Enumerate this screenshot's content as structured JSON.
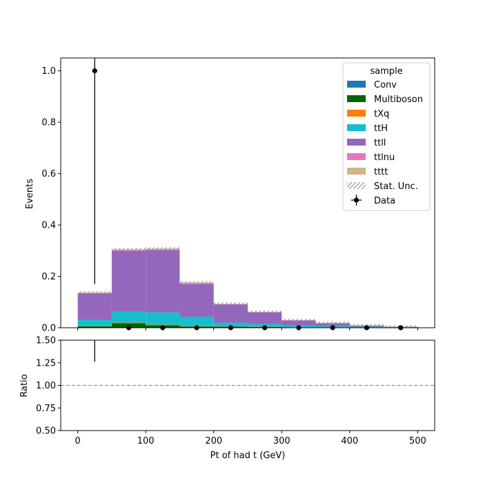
{
  "chart_data": {
    "type": "bar",
    "stacked": true,
    "xlabel": "Pt of had t (GeV)",
    "bin_edges": [
      0,
      50,
      100,
      150,
      200,
      250,
      300,
      350,
      400,
      450,
      500
    ],
    "x_ticks": [
      0,
      100,
      200,
      300,
      400,
      500
    ],
    "xlim": [
      -25,
      525
    ],
    "main": {
      "ylabel": "Events",
      "ylim": [
        0,
        1.05
      ],
      "y_ticks": [
        "0.0",
        "0.2",
        "0.4",
        "0.6",
        "0.8",
        "1.0"
      ],
      "series": [
        {
          "name": "Conv",
          "color": "#1f77b4",
          "values": [
            0,
            0,
            0,
            0,
            0,
            0,
            0,
            0,
            0,
            0
          ]
        },
        {
          "name": "Multiboson",
          "color": "#006400",
          "values": [
            0.006,
            0.018,
            0.01,
            0.005,
            0.004,
            0.003,
            0.002,
            0.001,
            0.001,
            0.0005
          ]
        },
        {
          "name": "tXq",
          "color": "#ff7f0e",
          "values": [
            0.001,
            0.002,
            0.002,
            0.001,
            0.001,
            0.001,
            0.0005,
            0.0005,
            0.0003,
            0.0002
          ]
        },
        {
          "name": "ttH",
          "color": "#17becf",
          "values": [
            0.024,
            0.042,
            0.048,
            0.037,
            0.015,
            0.011,
            0.007,
            0.005,
            0.003,
            0.001
          ]
        },
        {
          "name": "ttll",
          "color": "#9467bd",
          "values": [
            0.103,
            0.238,
            0.243,
            0.128,
            0.071,
            0.045,
            0.019,
            0.011,
            0.004,
            0.002
          ]
        },
        {
          "name": "ttlnu",
          "color": "#e377c2",
          "values": [
            0.001,
            0.002,
            0.002,
            0.002,
            0.001,
            0.001,
            0.0005,
            0.0005,
            0.0003,
            0.0002
          ]
        },
        {
          "name": "tttt",
          "color": "#d2b48c",
          "values": [
            0.002,
            0.003,
            0.003,
            0.003,
            0.001,
            0.0005,
            0.0005,
            0.0005,
            0.0002,
            0.0001
          ]
        }
      ],
      "stat_unc_label": "Stat. Unc.",
      "data": {
        "name": "Data",
        "x": [
          25,
          75,
          125,
          175,
          225,
          275,
          325,
          375,
          425,
          475
        ],
        "y": [
          1.0,
          0,
          0,
          0,
          0,
          0,
          0,
          0,
          0,
          0
        ],
        "yerr": [
          0.83,
          0,
          0,
          0,
          0,
          0,
          0,
          0,
          0,
          0
        ]
      }
    },
    "ratio": {
      "ylabel": "Ratio",
      "ylim": [
        0.5,
        1.5
      ],
      "y_ticks": [
        "0.50",
        "0.75",
        "1.00",
        "1.25",
        "1.50"
      ],
      "reference_line": 1.0,
      "errorbar": {
        "x": 25,
        "low": 1.26,
        "high": 1.5
      }
    },
    "legend": {
      "title": "sample",
      "placement": "top-right"
    }
  }
}
